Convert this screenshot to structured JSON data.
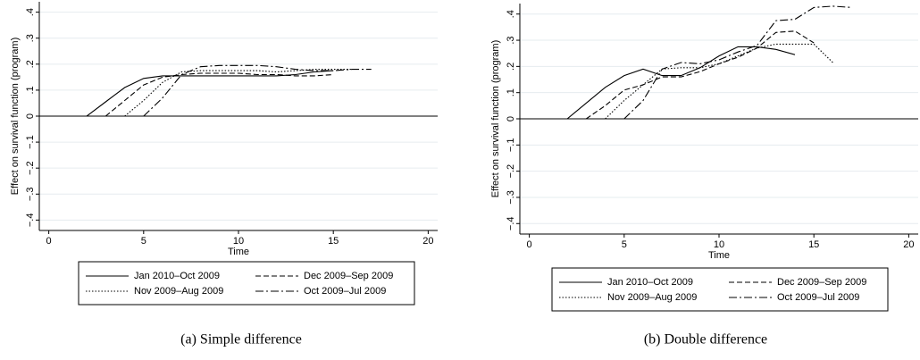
{
  "chart_data": [
    {
      "type": "line",
      "caption": "(a) Simple difference",
      "xlabel": "Time",
      "ylabel": "Effect on survival function (program)",
      "x": [
        2,
        3,
        4,
        5,
        6,
        7,
        8,
        9,
        10,
        11,
        12,
        13,
        14,
        15,
        16,
        17
      ],
      "xlim": [
        -0.5,
        20.5
      ],
      "xticks": [
        0,
        5,
        10,
        15,
        20
      ],
      "ylim": [
        -0.44,
        0.44
      ],
      "yticks": [
        {
          "value": -0.4,
          "label": "−.4"
        },
        {
          "value": -0.3,
          "label": "−.3"
        },
        {
          "value": -0.2,
          "label": "−.2"
        },
        {
          "value": -0.1,
          "label": "−.1"
        },
        0,
        {
          "value": 0.1,
          "label": ".1"
        },
        {
          "value": 0.2,
          "label": ".2"
        },
        {
          "value": 0.3,
          "label": ".3"
        },
        {
          "value": 0.4,
          "label": ".4"
        }
      ],
      "grid": true,
      "series": [
        {
          "name": "Jan 2010–Oct 2009",
          "color": "#000000",
          "style": "solid",
          "values": [
            0,
            0.055,
            0.11,
            0.145,
            0.155,
            0.155,
            0.155,
            0.155,
            0.155,
            0.155,
            0.155,
            0.16,
            0.17,
            0.175,
            null,
            null
          ]
        },
        {
          "name": "Dec 2009–Sep 2009",
          "color": "#000000",
          "style": "dashed",
          "values": [
            null,
            0,
            0.06,
            0.12,
            0.15,
            0.16,
            0.165,
            0.165,
            0.165,
            0.16,
            0.16,
            0.155,
            0.155,
            0.16,
            null,
            null
          ]
        },
        {
          "name": "Nov 2009–Aug 2009",
          "color": "#000000",
          "style": "dotted",
          "values": [
            null,
            null,
            0,
            0.06,
            0.13,
            0.17,
            0.175,
            0.175,
            0.175,
            0.175,
            0.17,
            0.175,
            0.18,
            0.18,
            0.18,
            null
          ]
        },
        {
          "name": "Oct 2009–Jul 2009",
          "color": "#000000",
          "style": "dashdot",
          "values": [
            null,
            null,
            null,
            0,
            0.07,
            0.16,
            0.19,
            0.195,
            0.195,
            0.195,
            0.19,
            0.18,
            0.175,
            0.175,
            0.18,
            0.18
          ]
        }
      ]
    },
    {
      "type": "line",
      "caption": "(b) Double difference",
      "xlabel": "Time",
      "ylabel": "Effect on survival function (program)",
      "x": [
        2,
        3,
        4,
        5,
        6,
        7,
        8,
        9,
        10,
        11,
        12,
        13,
        14,
        15,
        16,
        17
      ],
      "xlim": [
        -0.5,
        20.5
      ],
      "xticks": [
        0,
        5,
        10,
        15,
        20
      ],
      "ylim": [
        -0.44,
        0.44
      ],
      "yticks": [
        {
          "value": -0.4,
          "label": "−.4"
        },
        {
          "value": -0.3,
          "label": "−.3"
        },
        {
          "value": -0.2,
          "label": "−.2"
        },
        {
          "value": -0.1,
          "label": "−.1"
        },
        0,
        {
          "value": 0.1,
          "label": ".1"
        },
        {
          "value": 0.2,
          "label": ".2"
        },
        {
          "value": 0.3,
          "label": ".3"
        },
        {
          "value": 0.4,
          "label": ".4"
        }
      ],
      "grid": true,
      "series": [
        {
          "name": "Jan 2010–Oct 2009",
          "color": "#000000",
          "style": "solid",
          "values": [
            0,
            0.06,
            0.12,
            0.165,
            0.19,
            0.165,
            0.165,
            0.195,
            0.24,
            0.275,
            0.275,
            0.265,
            0.245,
            null,
            null,
            null
          ]
        },
        {
          "name": "Dec 2009–Sep 2009",
          "color": "#000000",
          "style": "dashed",
          "values": [
            null,
            0,
            0.05,
            0.11,
            0.13,
            0.16,
            0.16,
            0.18,
            0.21,
            0.235,
            0.27,
            0.33,
            0.335,
            0.29,
            null,
            null
          ]
        },
        {
          "name": "Nov 2009–Aug 2009",
          "color": "#000000",
          "style": "dotted",
          "values": [
            null,
            null,
            0,
            0.07,
            0.13,
            0.19,
            0.195,
            0.195,
            0.21,
            0.24,
            0.27,
            0.285,
            0.285,
            0.285,
            0.215,
            null
          ]
        },
        {
          "name": "Oct 2009–Jul 2009",
          "color": "#000000",
          "style": "dashdot",
          "values": [
            null,
            null,
            null,
            0,
            0.07,
            0.19,
            0.215,
            0.21,
            0.225,
            0.255,
            0.28,
            0.375,
            0.38,
            0.425,
            0.43,
            0.425
          ]
        }
      ]
    }
  ]
}
